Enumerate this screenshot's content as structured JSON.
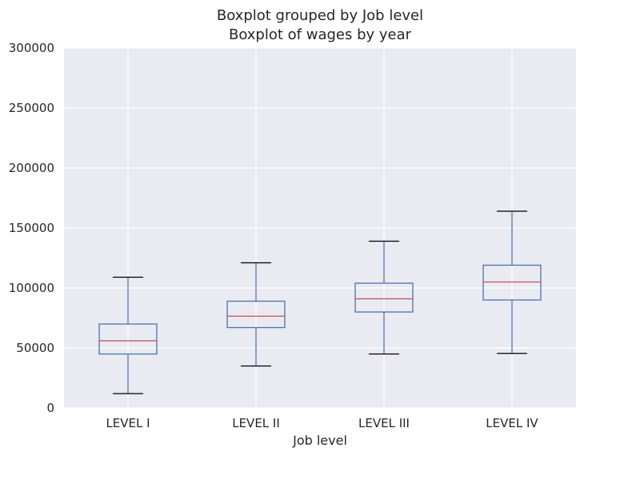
{
  "chart_data": {
    "type": "boxplot",
    "title": "Boxplot grouped by Job level",
    "subtitle": "Boxplot of wages by year",
    "xlabel": "Job level",
    "ylabel": "",
    "ylim": [
      0,
      300000
    ],
    "yticks": [
      "0",
      "50000",
      "100000",
      "150000",
      "200000",
      "250000",
      "300000"
    ],
    "categories": [
      "LEVEL I",
      "LEVEL II",
      "LEVEL III",
      "LEVEL IV"
    ],
    "boxes": [
      {
        "category": "LEVEL I",
        "whisker_low": 12000,
        "q1": 45000,
        "median": 56000,
        "q3": 70000,
        "whisker_high": 109000
      },
      {
        "category": "LEVEL II",
        "whisker_low": 35000,
        "q1": 67000,
        "median": 76500,
        "q3": 89000,
        "whisker_high": 121000
      },
      {
        "category": "LEVEL III",
        "whisker_low": 45000,
        "q1": 80000,
        "median": 91000,
        "q3": 104000,
        "whisker_high": 139000
      },
      {
        "category": "LEVEL IV",
        "whisker_low": 45500,
        "q1": 90000,
        "median": 105000,
        "q3": 119000,
        "whisker_high": 164000
      }
    ],
    "grid": true,
    "colors": {
      "background": "#eaeaf2",
      "grid": "#ffffff",
      "box": "#4c72b0",
      "median": "#c44e52",
      "cap": "#000000"
    }
  }
}
